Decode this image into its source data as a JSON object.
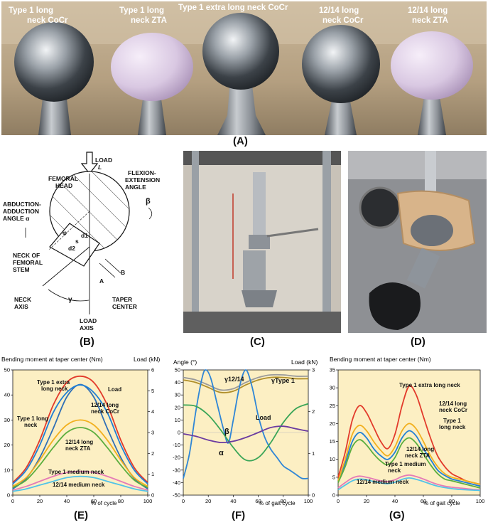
{
  "photo_a": {
    "labels": [
      {
        "line1": "Type 1 long",
        "line2": "neck CoCr"
      },
      {
        "line1": "Type 1 long",
        "line2": "neck ZTA"
      },
      {
        "line1": "Type 1 extra long neck CoCr",
        "line2": ""
      },
      {
        "line1": "12/14 long",
        "line2": "neck CoCr"
      },
      {
        "line1": "12/14 long",
        "line2": "neck ZTA"
      }
    ],
    "heads": [
      {
        "material": "CoCr",
        "color": "#7d858c"
      },
      {
        "material": "ZTA",
        "color": "#d7c7e0"
      },
      {
        "material": "CoCr",
        "color": "#80878e"
      },
      {
        "material": "CoCr",
        "color": "#6f777e"
      },
      {
        "material": "ZTA",
        "color": "#dccbe4"
      }
    ]
  },
  "panel_labels": {
    "A": "(A)",
    "B": "(B)",
    "C": "(C)",
    "D": "(D)",
    "E": "(E)",
    "F": "(F)",
    "G": "(G)"
  },
  "diagram_b": {
    "load": "LOAD",
    "load_symbol": "L",
    "femoral_head": [
      "FEMORAL",
      "HEAD"
    ],
    "flexion": [
      "FLEXION-",
      "EXTENSION",
      "ANGLE"
    ],
    "beta": "β",
    "abduction": [
      "ABDUCTION-",
      "ADDUCTION",
      "ANGLE α"
    ],
    "neck_stem": [
      "NECK OF",
      "FEMORAL",
      "STEM"
    ],
    "neck_axis": [
      "NECK",
      "AXIS"
    ],
    "gamma": "γ",
    "load_axis": [
      "LOAD",
      "AXIS"
    ],
    "taper_center": [
      "TAPER",
      "CENTER"
    ],
    "A": "A",
    "B": "B",
    "d1": "d1",
    "d2": "d2",
    "s": "s",
    "phi": "φ"
  },
  "chart_data": [
    {
      "id": "E",
      "type": "line",
      "ylabel_left": "Bending moment at taper center (Nm)",
      "ylabel_right": "Load (kN)",
      "xlabel": "% of cycle",
      "xlim": [
        0,
        100
      ],
      "ylim_left": [
        0,
        50
      ],
      "ylim_right": [
        0,
        6
      ],
      "xticks": [
        0,
        20,
        40,
        60,
        80,
        100
      ],
      "yticks_left": [
        0,
        10,
        20,
        30,
        40,
        50
      ],
      "yticks_right": [
        0,
        1,
        2,
        3,
        4,
        5,
        6
      ],
      "background": "#fcefc3",
      "series": [
        {
          "name": "Load",
          "axis": "right",
          "color": "#2f6fb6",
          "x": [
            0,
            10,
            20,
            30,
            40,
            50,
            60,
            70,
            80,
            90,
            100
          ],
          "y": [
            0.3,
            0.8,
            1.8,
            3.2,
            4.7,
            5.3,
            4.7,
            3.2,
            1.8,
            0.8,
            0.3
          ]
        },
        {
          "name": "Type 1 extra long neck",
          "axis": "left",
          "color": "#e23a2b",
          "x": [
            0,
            10,
            20,
            30,
            40,
            50,
            60,
            70,
            80,
            90,
            100
          ],
          "y": [
            5,
            11,
            22,
            36,
            45,
            47.5,
            45,
            36,
            22,
            11,
            5
          ]
        },
        {
          "name": "12/14 long neck CoCr",
          "axis": "left",
          "color": "#1f7fd6",
          "x": [
            0,
            10,
            20,
            30,
            40,
            50,
            60,
            70,
            80,
            90,
            100
          ],
          "y": [
            4.5,
            10,
            20,
            33,
            41,
            44,
            41,
            33,
            20,
            10,
            4.5
          ]
        },
        {
          "name": "Type 1 long neck",
          "axis": "left",
          "color": "#f2b01e",
          "x": [
            0,
            10,
            20,
            30,
            40,
            50,
            60,
            70,
            80,
            90,
            100
          ],
          "y": [
            3.5,
            7,
            14,
            22,
            28,
            30,
            28,
            22,
            14,
            7,
            3.5
          ]
        },
        {
          "name": "12/14 long neck ZTA",
          "axis": "left",
          "color": "#5cae3f",
          "x": [
            0,
            10,
            20,
            30,
            40,
            50,
            60,
            70,
            80,
            90,
            100
          ],
          "y": [
            3,
            6,
            12,
            19,
            25,
            27,
            25,
            19,
            12,
            6,
            3
          ]
        },
        {
          "name": "Type 1 medium neck",
          "axis": "left",
          "color": "#e57ab6",
          "x": [
            0,
            10,
            20,
            30,
            40,
            50,
            60,
            70,
            80,
            90,
            100
          ],
          "y": [
            2,
            3.5,
            5.5,
            7.5,
            9,
            9.5,
            9,
            7.5,
            5.5,
            3.5,
            2
          ]
        },
        {
          "name": "12/14 medium neck",
          "axis": "left",
          "color": "#52c3e8",
          "x": [
            0,
            10,
            20,
            30,
            40,
            50,
            60,
            70,
            80,
            90,
            100
          ],
          "y": [
            1.5,
            2.5,
            4,
            5.5,
            7,
            7.5,
            7,
            5.5,
            4,
            2.5,
            1.5
          ]
        }
      ],
      "series_labels": [
        {
          "text": "Type 1 extra",
          "text2": "long neck"
        },
        {
          "text": "Load",
          "text2": ""
        },
        {
          "text": "12/14 long",
          "text2": "neck CoCr"
        },
        {
          "text": "Type 1 long",
          "text2": "neck"
        },
        {
          "text": "12/14 long",
          "text2": "neck ZTA"
        },
        {
          "text": "Type 1 medium neck",
          "text2": ""
        },
        {
          "text": "12/14 medium neck",
          "text2": ""
        }
      ]
    },
    {
      "id": "F",
      "type": "line",
      "ylabel_left": "Angle (°)",
      "ylabel_right": "Load (kN)",
      "xlabel": "% of gait cycle",
      "xlim": [
        0,
        100
      ],
      "ylim_left": [
        -50,
        50
      ],
      "ylim_right": [
        0,
        3
      ],
      "xticks": [
        0,
        20,
        40,
        60,
        80,
        100
      ],
      "yticks_left": [
        -50,
        -40,
        -30,
        -20,
        -10,
        0,
        10,
        20,
        30,
        40,
        50
      ],
      "yticks_right": [
        0,
        1,
        2,
        3
      ],
      "background": "#fcefc3",
      "series": [
        {
          "name": "γ12/14",
          "axis": "left",
          "color": "#9a9a9a",
          "x": [
            0,
            10,
            20,
            30,
            40,
            50,
            60,
            70,
            80,
            90,
            100
          ],
          "y": [
            44,
            42,
            38,
            34,
            35,
            40,
            44,
            46,
            46,
            45,
            45
          ]
        },
        {
          "name": "γType 1",
          "axis": "left",
          "color": "#b08f2a",
          "x": [
            0,
            10,
            20,
            30,
            40,
            50,
            60,
            70,
            80,
            90,
            100
          ],
          "y": [
            42,
            40,
            36,
            32,
            33,
            38,
            42,
            44,
            44,
            43,
            43
          ]
        },
        {
          "name": "Load",
          "axis": "right",
          "color": "#2f86d6",
          "x": [
            0,
            5,
            10,
            15,
            18,
            22,
            27,
            32,
            36,
            40,
            45,
            50,
            55,
            60,
            65,
            70,
            75,
            80,
            85,
            90,
            95,
            100
          ],
          "y": [
            0.4,
            1.0,
            2.0,
            2.8,
            3.0,
            2.8,
            2.2,
            1.6,
            1.25,
            1.8,
            2.6,
            3.0,
            2.6,
            1.9,
            1.4,
            1.1,
            0.9,
            0.7,
            0.6,
            0.5,
            0.4,
            0.4
          ]
        },
        {
          "name": "β",
          "axis": "left",
          "color": "#3aa558",
          "x": [
            0,
            10,
            20,
            30,
            40,
            50,
            60,
            70,
            80,
            90,
            100
          ],
          "y": [
            22,
            21,
            14,
            2,
            -12,
            -22,
            -20,
            -8,
            8,
            19,
            23
          ]
        },
        {
          "name": "α",
          "axis": "left",
          "color": "#6a3aa0",
          "x": [
            0,
            10,
            20,
            30,
            40,
            50,
            60,
            70,
            80,
            90,
            100
          ],
          "y": [
            -1,
            -3,
            -6,
            -8,
            -7,
            -4,
            0,
            4,
            5,
            3,
            1
          ]
        }
      ],
      "series_labels": [
        {
          "text": "γ12/14"
        },
        {
          "text": "γType 1"
        },
        {
          "text": "Load"
        },
        {
          "text": "β"
        },
        {
          "text": "α"
        }
      ]
    },
    {
      "id": "G",
      "type": "line",
      "ylabel_left": "Bending moment at taper center (Nm)",
      "xlabel": "% of gait cycle",
      "xlim": [
        0,
        100
      ],
      "ylim_left": [
        0,
        35
      ],
      "xticks": [
        0,
        20,
        40,
        60,
        80,
        100
      ],
      "yticks_left": [
        0,
        5,
        10,
        15,
        20,
        25,
        30,
        35
      ],
      "background": "#fcefc3",
      "series": [
        {
          "name": "Type 1 extra long neck",
          "color": "#e23a2b",
          "x": [
            0,
            5,
            10,
            15,
            20,
            25,
            30,
            35,
            40,
            45,
            50,
            55,
            60,
            65,
            70,
            75,
            80,
            85,
            90,
            95,
            100
          ],
          "y": [
            5,
            12,
            21,
            25,
            23,
            19,
            15,
            13,
            17,
            25,
            30.5,
            28,
            22,
            16,
            11,
            8,
            6,
            5,
            4,
            3.5,
            3
          ]
        },
        {
          "name": "12/14 long neck CoCr",
          "color": "#1f7fd6",
          "x": [
            0,
            5,
            10,
            15,
            20,
            25,
            30,
            35,
            40,
            45,
            50,
            55,
            60,
            65,
            70,
            75,
            80,
            85,
            90,
            95,
            100
          ],
          "y": [
            4,
            9,
            15,
            17.5,
            16,
            13,
            11,
            10,
            12,
            16,
            18,
            16.5,
            13,
            10,
            7,
            5.5,
            4.5,
            4,
            3.5,
            3,
            2.5
          ]
        },
        {
          "name": "Type 1 long neck",
          "color": "#f2b01e",
          "x": [
            0,
            5,
            10,
            15,
            20,
            25,
            30,
            35,
            40,
            45,
            50,
            55,
            60,
            65,
            70,
            75,
            80,
            85,
            90,
            95,
            100
          ],
          "y": [
            4,
            10,
            17,
            19.5,
            18,
            15,
            12.5,
            11,
            13.5,
            18,
            20,
            18.5,
            15,
            11,
            8,
            6,
            5,
            4.5,
            4,
            3.5,
            3
          ]
        },
        {
          "name": "12/14 long neck ZTA",
          "color": "#5cae3f",
          "x": [
            0,
            5,
            10,
            15,
            20,
            25,
            30,
            35,
            40,
            45,
            50,
            55,
            60,
            65,
            70,
            75,
            80,
            85,
            90,
            95,
            100
          ],
          "y": [
            3.5,
            8,
            13.5,
            15.5,
            14,
            11.5,
            9.5,
            8.5,
            10.5,
            14.5,
            16,
            14.5,
            11.5,
            8.5,
            6,
            4.5,
            4,
            3.5,
            3,
            2.5,
            2
          ]
        },
        {
          "name": "Type 1 medium neck",
          "color": "#e57ab6",
          "x": [
            0,
            5,
            10,
            15,
            20,
            25,
            30,
            35,
            40,
            45,
            50,
            55,
            60,
            65,
            70,
            75,
            80,
            85,
            90,
            95,
            100
          ],
          "y": [
            2,
            3.5,
            4.8,
            5.3,
            5,
            4.5,
            4,
            3.8,
            4.3,
            5.2,
            5.6,
            5.2,
            4.5,
            3.7,
            3,
            2.5,
            2.2,
            2,
            1.8,
            1.6,
            1.5
          ]
        },
        {
          "name": "12/14 medium neck",
          "color": "#52c3e8",
          "x": [
            0,
            5,
            10,
            15,
            20,
            25,
            30,
            35,
            40,
            45,
            50,
            55,
            60,
            65,
            70,
            75,
            80,
            85,
            90,
            95,
            100
          ],
          "y": [
            1.5,
            2.8,
            4,
            4.5,
            4.3,
            3.8,
            3.4,
            3.2,
            3.6,
            4.4,
            4.8,
            4.4,
            3.8,
            3.1,
            2.5,
            2.1,
            1.8,
            1.6,
            1.5,
            1.4,
            1.3
          ]
        }
      ],
      "series_labels": [
        {
          "text": "Type 1 extra long neck",
          "text2": ""
        },
        {
          "text": "12/14 long",
          "text2": "neck CoCr"
        },
        {
          "text": "Type 1",
          "text2": "long neck"
        },
        {
          "text": "12/14 long",
          "text2": "neck ZTA"
        },
        {
          "text": "Type 1 medium",
          "text2": "neck"
        },
        {
          "text": "12/14 medium neck",
          "text2": ""
        }
      ]
    }
  ]
}
